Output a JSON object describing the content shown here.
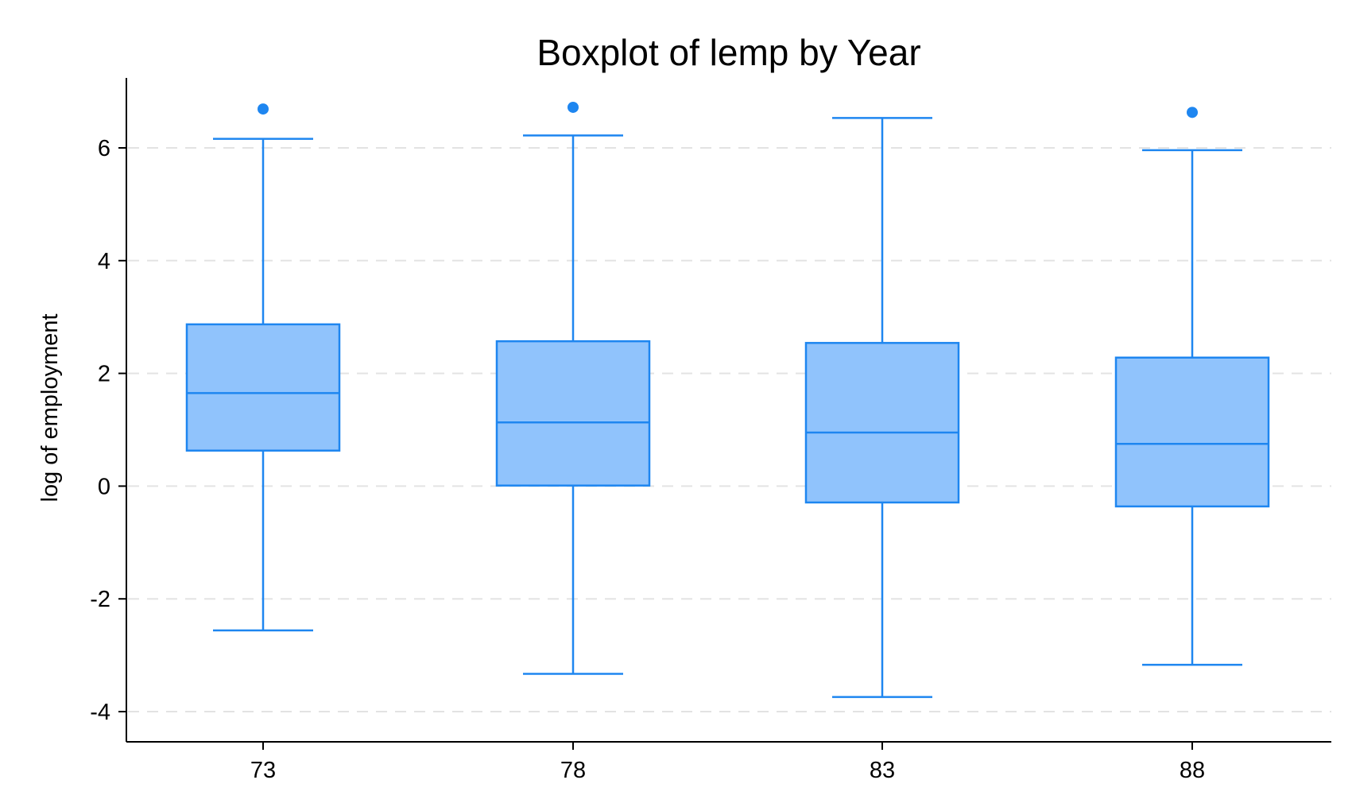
{
  "chart_data": {
    "type": "box",
    "title": "Boxplot of lemp by Year",
    "xlabel": "",
    "ylabel": "log of employment",
    "categories": [
      "73",
      "78",
      "83",
      "88"
    ],
    "boxes": [
      {
        "category": "73",
        "whisker_low": -2.56,
        "q1": 0.63,
        "median": 1.65,
        "q3": 2.87,
        "whisker_high": 6.16,
        "outliers": [
          6.69
        ]
      },
      {
        "category": "78",
        "whisker_low": -3.33,
        "q1": 0.01,
        "median": 1.13,
        "q3": 2.57,
        "whisker_high": 6.22,
        "outliers": [
          6.72
        ]
      },
      {
        "category": "83",
        "whisker_low": -3.74,
        "q1": -0.29,
        "median": 0.95,
        "q3": 2.54,
        "whisker_high": 6.53,
        "outliers": []
      },
      {
        "category": "88",
        "whisker_low": -3.17,
        "q1": -0.36,
        "median": 0.75,
        "q3": 2.28,
        "whisker_high": 5.96,
        "outliers": [
          6.63
        ]
      }
    ],
    "yticks": [
      6,
      4,
      2,
      0,
      -2,
      -4
    ],
    "ytick_labels": [
      "6",
      "4",
      "2",
      "0",
      "-2",
      "-4"
    ],
    "ylim": [
      -4.5,
      7.2
    ],
    "grid": true,
    "colors": {
      "box_fill": "#90c3fc",
      "box_stroke": "#1e86f0",
      "outlier": "#1e86f0",
      "grid": "#e3e3e3"
    }
  }
}
